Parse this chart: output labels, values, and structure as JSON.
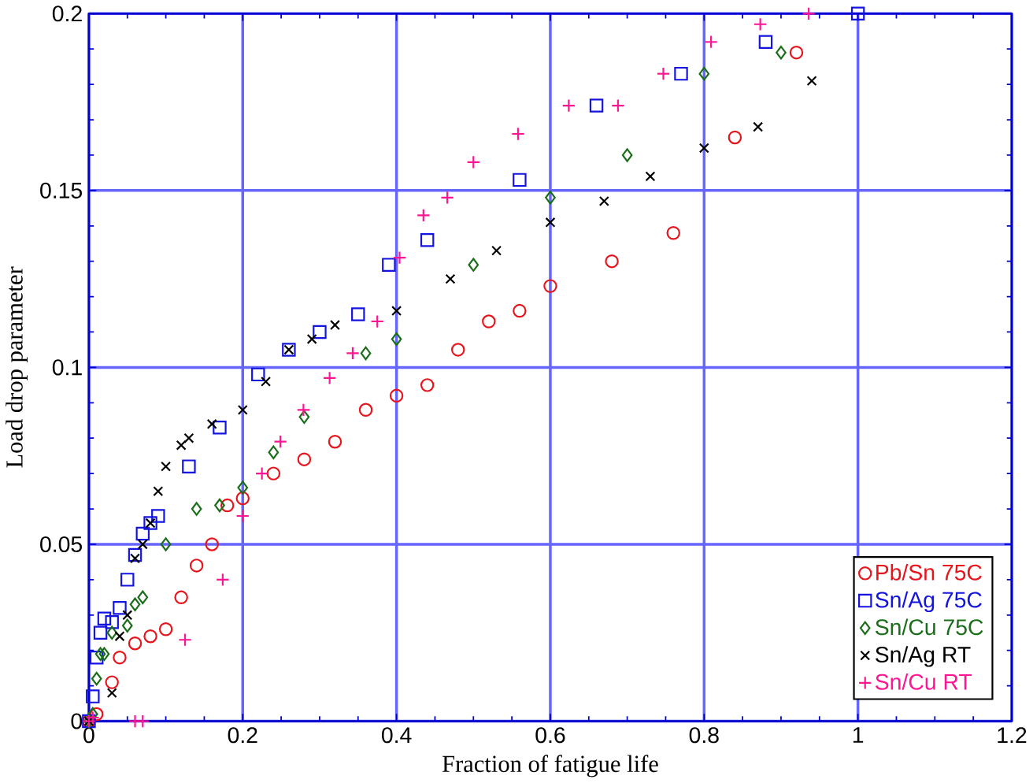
{
  "chart_data": {
    "type": "scatter",
    "xlabel": "Fraction of fatigue life",
    "ylabel": "Load drop parameter",
    "xlim": [
      0,
      1.2
    ],
    "ylim": [
      0,
      0.2
    ],
    "xticks": [
      0,
      0.2,
      0.4,
      0.6,
      0.8,
      1,
      1.2
    ],
    "yticks": [
      0,
      0.05,
      0.1,
      0.15,
      0.2
    ],
    "grid": true,
    "legend": "bottom right",
    "series": [
      {
        "name": "Pb/Sn 75C",
        "color": "#e8141c",
        "marker": "circle",
        "x": [
          0,
          0.01,
          0.03,
          0.04,
          0.06,
          0.08,
          0.1,
          0.12,
          0.14,
          0.16,
          0.18,
          0.2,
          0.24,
          0.28,
          0.32,
          0.36,
          0.4,
          0.44,
          0.48,
          0.52,
          0.56,
          0.6,
          0.68,
          0.76,
          0.84,
          0.92
        ],
        "values": [
          0,
          0.002,
          0.011,
          0.018,
          0.022,
          0.024,
          0.026,
          0.035,
          0.044,
          0.05,
          0.061,
          0.063,
          0.07,
          0.074,
          0.079,
          0.088,
          0.092,
          0.095,
          0.105,
          0.113,
          0.116,
          0.123,
          0.13,
          0.138,
          0.165,
          0.189
        ]
      },
      {
        "name": "Sn/Ag 75C",
        "color": "#1414e0",
        "marker": "square",
        "x": [
          0,
          0.005,
          0.01,
          0.015,
          0.02,
          0.03,
          0.04,
          0.05,
          0.06,
          0.07,
          0.08,
          0.09,
          0.13,
          0.17,
          0.22,
          0.26,
          0.3,
          0.35,
          0.39,
          0.44,
          0.56,
          0.66,
          0.77,
          0.88,
          1
        ],
        "values": [
          0,
          0.007,
          0.018,
          0.025,
          0.029,
          0.028,
          0.032,
          0.04,
          0.047,
          0.053,
          0.056,
          0.058,
          0.072,
          0.083,
          0.098,
          0.105,
          0.11,
          0.115,
          0.129,
          0.136,
          0.153,
          0.174,
          0.183,
          0.192,
          0.2
        ]
      },
      {
        "name": "Sn/Cu 75C",
        "color": "#1a6e1a",
        "marker": "diamond",
        "x": [
          0,
          0.005,
          0.01,
          0.015,
          0.02,
          0.03,
          0.05,
          0.06,
          0.07,
          0.1,
          0.14,
          0.17,
          0.2,
          0.24,
          0.28,
          0.36,
          0.4,
          0.5,
          0.6,
          0.7,
          0.8,
          0.9
        ],
        "values": [
          0,
          0.002,
          0.012,
          0.019,
          0.019,
          0.025,
          0.027,
          0.033,
          0.035,
          0.05,
          0.06,
          0.061,
          0.066,
          0.076,
          0.086,
          0.104,
          0.108,
          0.129,
          0.148,
          0.16,
          0.183,
          0.189
        ]
      },
      {
        "name": "Sn/Ag RT",
        "color": "#000000",
        "marker": "cross",
        "x": [
          0,
          0.03,
          0.04,
          0.05,
          0.06,
          0.07,
          0.08,
          0.09,
          0.1,
          0.12,
          0.13,
          0.16,
          0.2,
          0.23,
          0.26,
          0.29,
          0.32,
          0.4,
          0.47,
          0.53,
          0.6,
          0.67,
          0.73,
          0.8,
          0.87,
          0.94
        ],
        "values": [
          0,
          0.008,
          0.024,
          0.03,
          0.046,
          0.05,
          0.056,
          0.065,
          0.072,
          0.078,
          0.08,
          0.084,
          0.088,
          0.096,
          0.105,
          0.108,
          0.112,
          0.116,
          0.125,
          0.133,
          0.141,
          0.147,
          0.154,
          0.162,
          0.168,
          0.181
        ]
      },
      {
        "name": "Sn/Cu RT",
        "color": "#ff1493",
        "marker": "plus",
        "x": [
          0,
          0.005,
          0.06,
          0.07,
          0.125,
          0.174,
          0.2,
          0.225,
          0.249,
          0.279,
          0.313,
          0.343,
          0.375,
          0.404,
          0.435,
          0.466,
          0.5,
          0.558,
          0.624,
          0.688,
          0.747,
          0.809,
          0.873,
          0.936
        ],
        "values": [
          0,
          0.001,
          0,
          0,
          0.023,
          0.04,
          0.058,
          0.07,
          0.079,
          0.088,
          0.097,
          0.104,
          0.113,
          0.131,
          0.143,
          0.148,
          0.158,
          0.166,
          0.174,
          0.174,
          0.183,
          0.192,
          0.197,
          0.2
        ]
      }
    ]
  }
}
